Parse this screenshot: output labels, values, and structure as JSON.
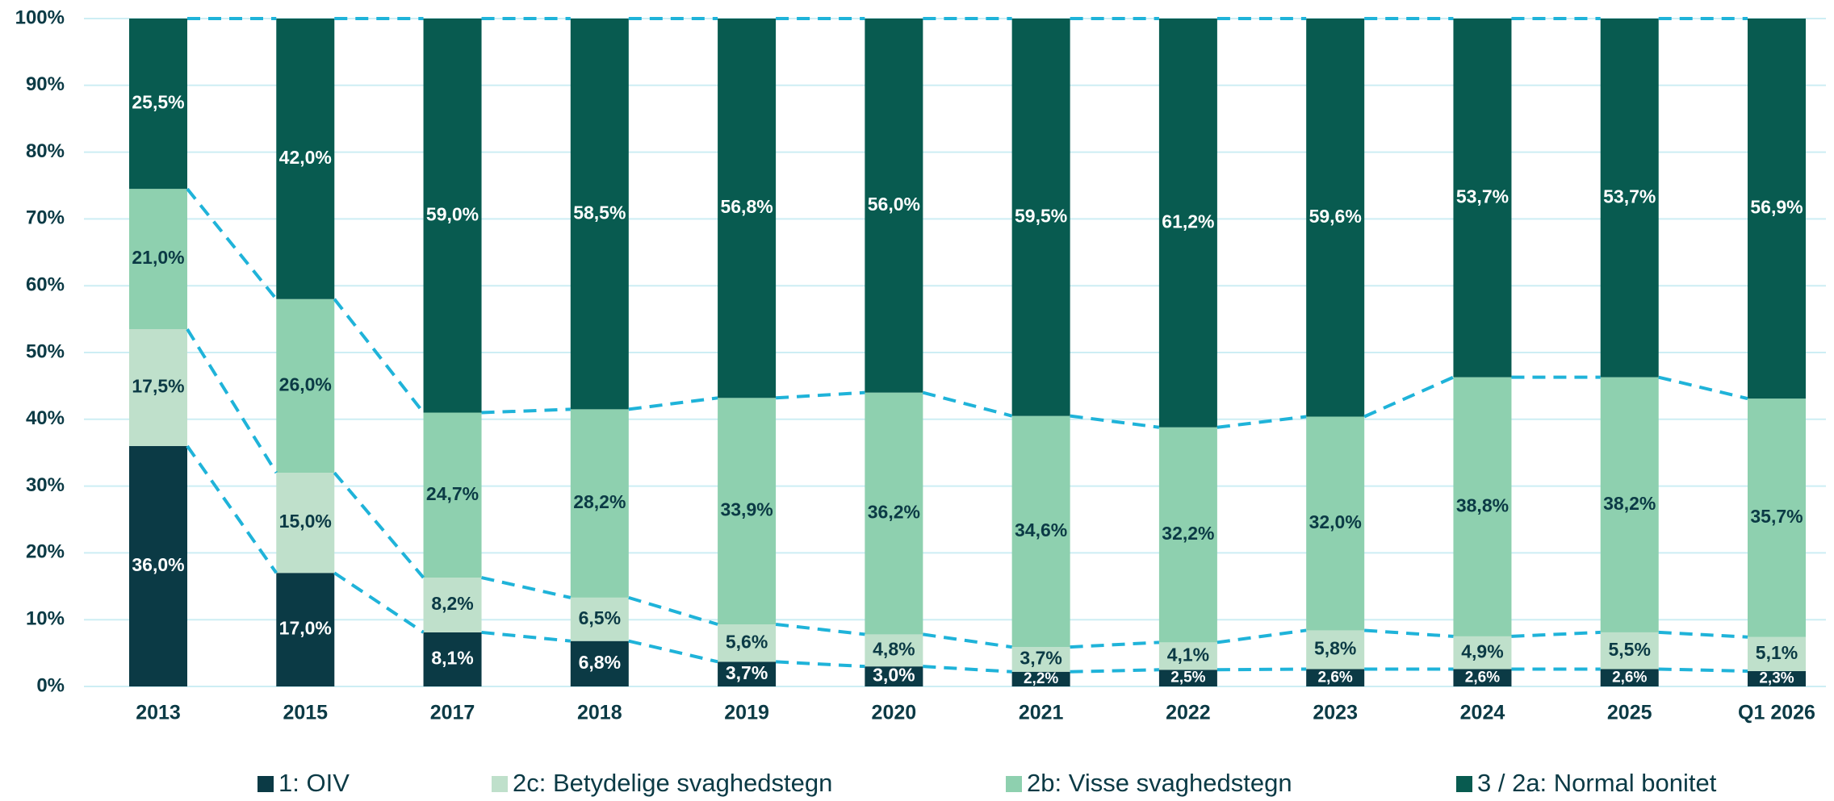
{
  "chart_data": {
    "type": "stacked_bar_percent",
    "categories": [
      "2013",
      "2015",
      "2017",
      "2018",
      "2019",
      "2020",
      "2021",
      "2022",
      "2023",
      "2024",
      "2025",
      "Q1 2026"
    ],
    "series": [
      {
        "name": "1: OIV",
        "color": "#0b3a45",
        "values": [
          36.0,
          17.0,
          8.1,
          6.8,
          3.7,
          3.0,
          2.2,
          2.5,
          2.6,
          2.6,
          2.6,
          2.3
        ],
        "value_labels": [
          "36,0%",
          "17,0%",
          "8,1%",
          "6,8%",
          "3,7%",
          "3,0%",
          "2,2%",
          "2,5%",
          "2,6%",
          "2,6%",
          "2,6%",
          "2,3%"
        ]
      },
      {
        "name": "2c: Betydelige svaghedstegn",
        "color": "#bfe0cb",
        "values": [
          17.5,
          15.0,
          8.2,
          6.5,
          5.6,
          4.8,
          3.7,
          4.1,
          5.8,
          4.9,
          5.5,
          5.1
        ],
        "value_labels": [
          "17,5%",
          "15,0%",
          "8,2%",
          "6,5%",
          "5,6%",
          "4,8%",
          "3,7%",
          "4,1%",
          "5,8%",
          "4,9%",
          "5,5%",
          "5,1%"
        ]
      },
      {
        "name": "2b: Visse svaghedstegn",
        "color": "#8ed0af",
        "values": [
          21.0,
          26.0,
          24.7,
          28.2,
          33.9,
          36.2,
          34.6,
          32.2,
          32.0,
          38.8,
          38.2,
          35.7
        ],
        "value_labels": [
          "21,0%",
          "26,0%",
          "24,7%",
          "28,2%",
          "33,9%",
          "36,2%",
          "34,6%",
          "32,2%",
          "32,0%",
          "38,8%",
          "38,2%",
          "35,7%"
        ]
      },
      {
        "name": "3 / 2a: Normal bonitet",
        "color": "#085b50",
        "values": [
          25.5,
          42.0,
          59.0,
          58.5,
          56.8,
          56.0,
          59.5,
          61.2,
          59.6,
          53.7,
          53.7,
          56.9
        ],
        "value_labels": [
          "25,5%",
          "42,0%",
          "59,0%",
          "58,5%",
          "56,8%",
          "56,0%",
          "59,5%",
          "61,2%",
          "59,6%",
          "53,7%",
          "53,7%",
          "56,9%"
        ]
      }
    ],
    "ylim": [
      0,
      100
    ],
    "yticks": [
      {
        "value": 0,
        "label": "0%"
      },
      {
        "value": 10,
        "label": "10%"
      },
      {
        "value": 20,
        "label": "20%"
      },
      {
        "value": 30,
        "label": "30%"
      },
      {
        "value": 40,
        "label": "40%"
      },
      {
        "value": 50,
        "label": "50%"
      },
      {
        "value": 60,
        "label": "60%"
      },
      {
        "value": 70,
        "label": "70%"
      },
      {
        "value": 80,
        "label": "80%"
      },
      {
        "value": 90,
        "label": "90%"
      },
      {
        "value": 100,
        "label": "100%"
      }
    ],
    "grid": true,
    "connector_color": "#1fb3d9",
    "legend": "bottom"
  }
}
